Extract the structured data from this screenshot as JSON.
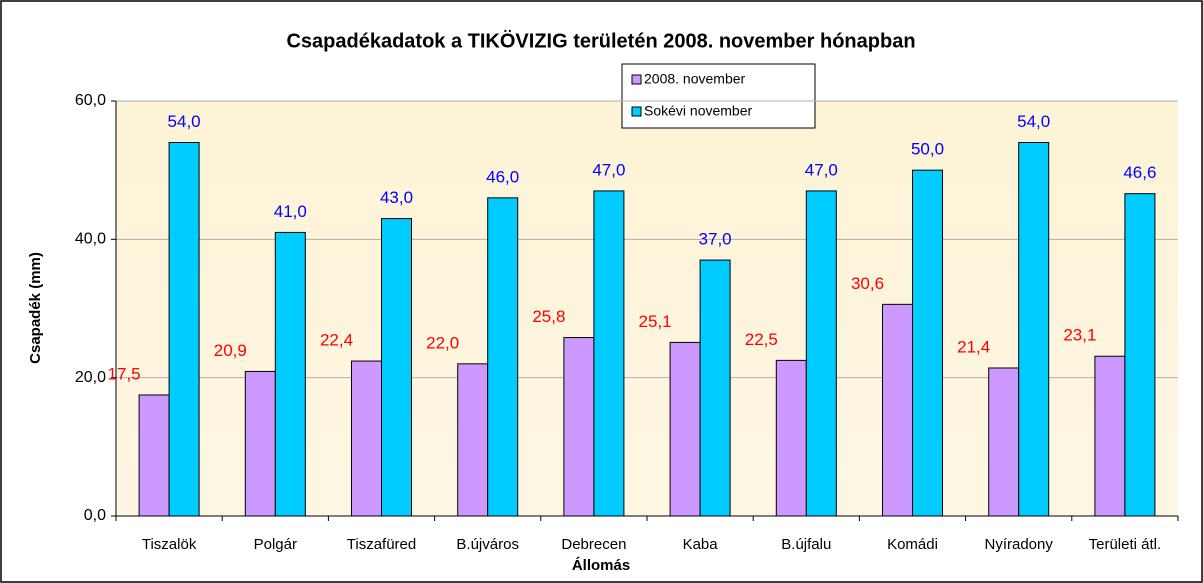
{
  "chart_data": {
    "type": "bar",
    "title": "Csapadékadatok a TIKÖVIZIG területén 2008. november hónapban",
    "xlabel": "Állomás",
    "ylabel": "Csapadék (mm)",
    "categories": [
      "Tiszalök",
      "Polgár",
      "Tiszafüred",
      "B.újváros",
      "Debrecen",
      "Kaba",
      "B.újfalu",
      "Komádi",
      "Nyíradony",
      "Területi átl."
    ],
    "series": [
      {
        "name": "2008. november",
        "color": "#cc99ff",
        "label_color": "#ff0000",
        "values": [
          17.5,
          20.9,
          22.4,
          22.0,
          25.8,
          25.1,
          22.5,
          30.6,
          21.4,
          23.1
        ],
        "value_labels": [
          "17,5",
          "20,9",
          "22,4",
          "22,0",
          "25,8",
          "25,1",
          "22,5",
          "30,6",
          "21,4",
          "23,1"
        ]
      },
      {
        "name": "Sokévi november",
        "color": "#00ccff",
        "label_color": "#0000ff",
        "values": [
          54.0,
          41.0,
          43.0,
          46.0,
          47.0,
          37.0,
          47.0,
          50.0,
          54.0,
          46.6
        ],
        "value_labels": [
          "54,0",
          "41,0",
          "43,0",
          "46,0",
          "47,0",
          "37,0",
          "47,0",
          "50,0",
          "54,0",
          "46,6"
        ]
      }
    ],
    "ylim": [
      0,
      60
    ],
    "yticks": [
      {
        "value": 0,
        "label": "0,0"
      },
      {
        "value": 20,
        "label": "20,0"
      },
      {
        "value": 40,
        "label": "40,0"
      },
      {
        "value": 60,
        "label": "60,0"
      }
    ],
    "grid": true,
    "legend": "top"
  }
}
